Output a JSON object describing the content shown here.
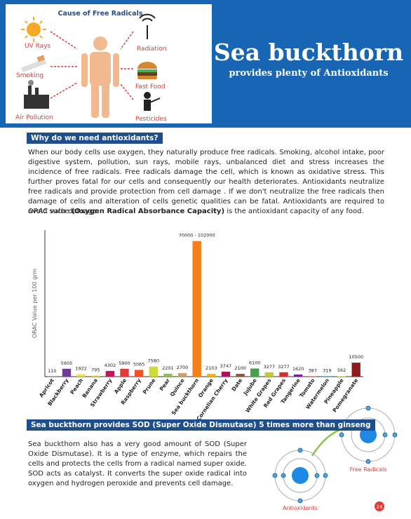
{
  "banner": {
    "diagram_title": "Cause of Free Radicals",
    "causes": [
      "UV Rays",
      "Smoking",
      "Air Pollution",
      "Radiation",
      "Fast Food",
      "Pesticides"
    ],
    "title": "Sea buckthorn",
    "subtitle": "provides plenty of Antioxidants"
  },
  "section1": {
    "heading": "Why do we need antioxidants?",
    "paragraph": "When our body cells use oxygen, they naturally produce free radicals. Smoking, alcohol intake, poor digestive system, pollution, sun rays, mobile rays, unbalanced diet and stress increases the incidence of free radicals. Free radicals damage the cell, which is known as oxidative stress. This further proves fatal for our cells and consequently our health deteriorates. Antioxidants neutralize free radicals and provide protection from cell damage . If we don't neutralize the free radicals then damage of cells and alteration of cells genetic qualities can be fatal. Antioxidants are required to avoid such damage.",
    "orac": [
      "ORAC value ",
      "(Oxygen Radical Absorbance Capacity)",
      " is the antioxidant capacity of any food."
    ]
  },
  "chart_data": {
    "type": "bar",
    "ylabel": "ORAC Value per 100 grm",
    "categories": [
      "Apricot",
      "Blackberry",
      "Peach",
      "Banana",
      "Strawberry",
      "Apple",
      "Raspberry",
      "Prune",
      "Pear",
      "Quince",
      "Sea buckthorn",
      "Orange",
      "Cornelian Cherry",
      "Date",
      "Jujube",
      "White Grapes",
      "Red Grapes",
      "Tangerine",
      "Tomato",
      "Watermelon",
      "Pineapple",
      "Pomegranate"
    ],
    "values": [
      110,
      5905,
      1922,
      795,
      4302,
      5900,
      5065,
      7580,
      2201,
      2700,
      102000,
      2103,
      3747,
      2100,
      6100,
      3277,
      3277,
      1620,
      387,
      319,
      562,
      10500
    ],
    "value_labels": [
      "110",
      "5905",
      "1922",
      "795",
      "4302",
      "5900",
      "5065",
      "7580",
      "2201",
      "2700",
      "70000 - 102000",
      "2103",
      "3747",
      "2100",
      "6100",
      "3277",
      "3277",
      "1620",
      "387",
      "319",
      "562",
      "10500"
    ],
    "colors": [
      "#8fa9c9",
      "#6a3d9a",
      "#f4e04d",
      "#f2d43a",
      "#c2185b",
      "#e53935",
      "#f4511e",
      "#cddc39",
      "#8bc34a",
      "#c9a36b",
      "#f57f17",
      "#ffb300",
      "#ad1457",
      "#8d5a3b",
      "#43a047",
      "#c0ca33",
      "#d32f2f",
      "#7b1fa2",
      "#e57373",
      "#1e88e5",
      "#fff59d",
      "#8e1b1b"
    ],
    "ylim": [
      0,
      105000
    ]
  },
  "section2": {
    "heading": "Sea buckthorn provides SOD (Super Oxide Dismutase) 5 times more than ginseng",
    "paragraph": "Sea buckthorn also has a very good amount of SOD (Super Oxide Dismutase). It is a type of enzyme, which repairs the cells and protects the cells from a radical named super oxide. SOD acts as catalyst. It converts the super oxide radical into oxygen and hydrogen peroxide and prevents cell damage.",
    "labels": [
      "Free Radicals",
      "Antioxidants"
    ]
  },
  "page_number": "24"
}
